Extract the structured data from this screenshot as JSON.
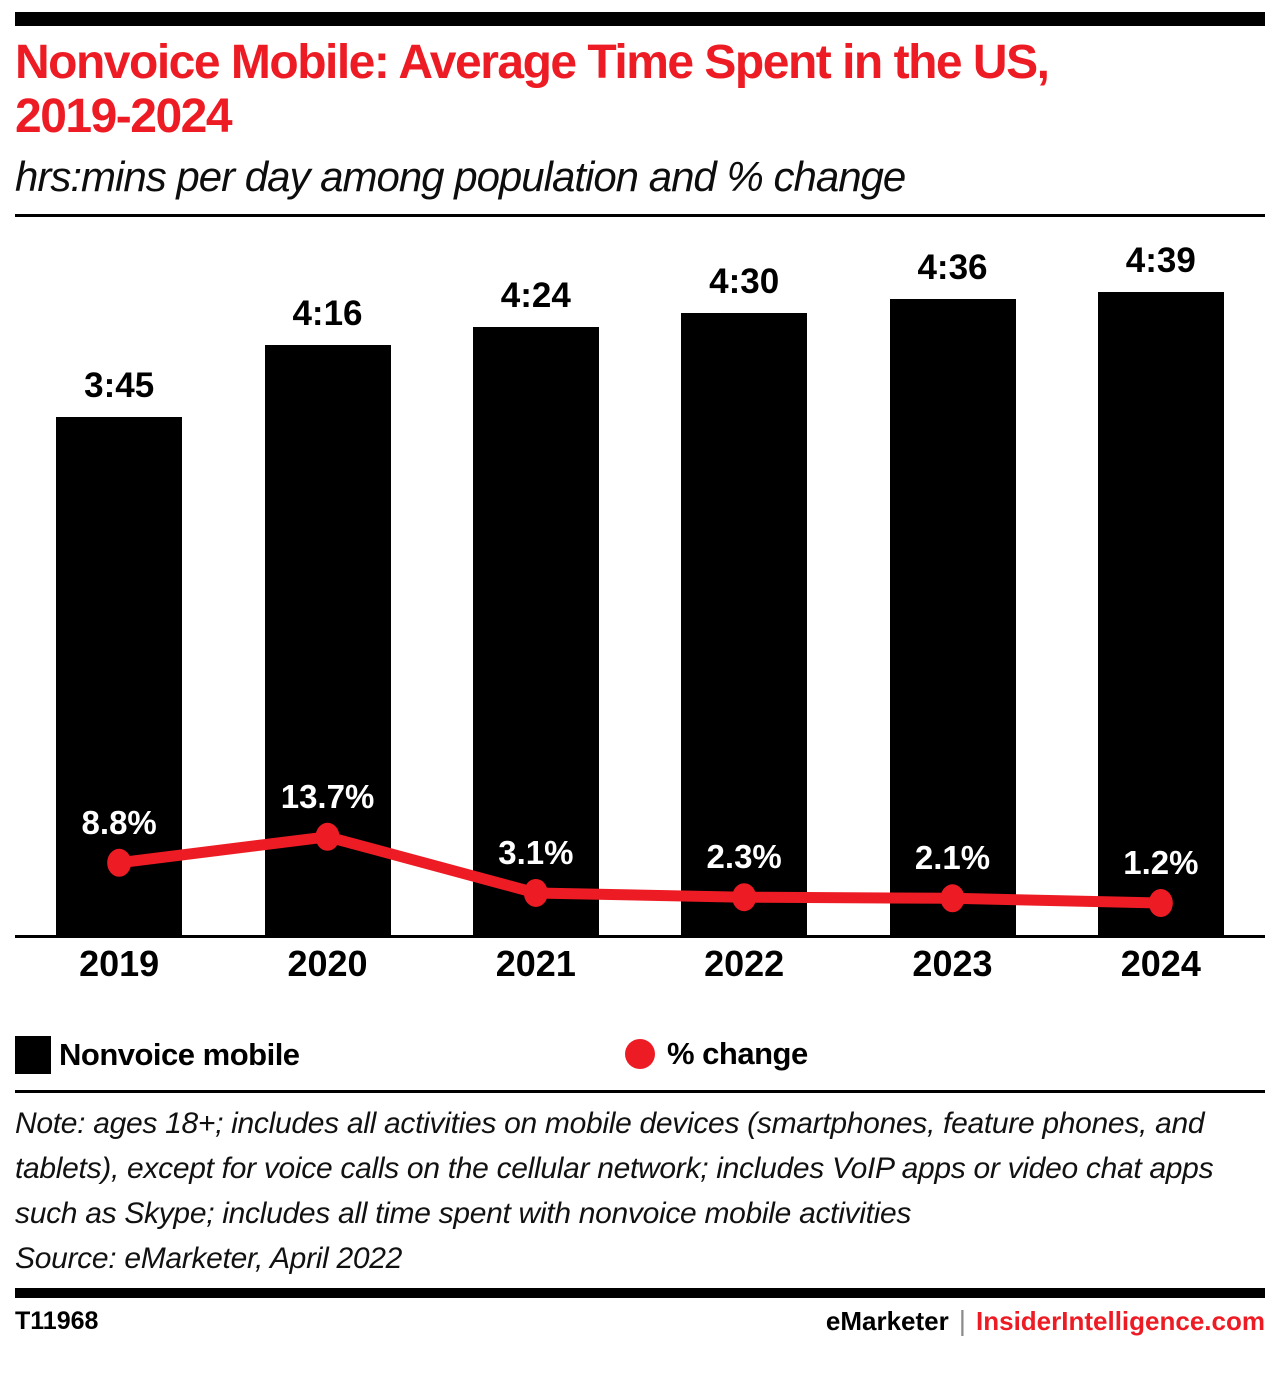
{
  "header": {
    "title_line1": "Nonvoice Mobile: Average Time Spent in the US,",
    "title_line2": "2019-2024",
    "subtitle": "hrs:mins per day among population and % change"
  },
  "chart_data": {
    "type": "bar",
    "combo": "bar+line",
    "title": "Nonvoice Mobile: Average Time Spent in the US, 2019-2024",
    "subtitle": "hrs:mins per day among population and % change",
    "categories": [
      "2019",
      "2020",
      "2021",
      "2022",
      "2023",
      "2024"
    ],
    "series": [
      {
        "name": "Nonvoice mobile",
        "type": "bar",
        "unit": "hrs:mins per day",
        "labels": [
          "3:45",
          "4:16",
          "4:24",
          "4:30",
          "4:36",
          "4:39"
        ],
        "values_minutes": [
          225,
          256,
          264,
          270,
          276,
          279
        ],
        "color": "#000000",
        "label_color": "#000000"
      },
      {
        "name": "% change",
        "type": "line",
        "unit": "%",
        "labels": [
          "8.8%",
          "13.7%",
          "3.1%",
          "2.3%",
          "2.1%",
          "1.2%"
        ],
        "values": [
          8.8,
          13.7,
          3.1,
          2.3,
          2.1,
          1.2
        ],
        "color": "#ED1C24",
        "label_color": "#ffffff"
      }
    ],
    "xlabel": "",
    "ylabel": "",
    "grid": false,
    "legend_position": "bottom"
  },
  "legend": {
    "bar_label": "Nonvoice mobile",
    "line_label": "% change"
  },
  "note": {
    "text": "Note: ages 18+; includes all activities on mobile devices (smartphones, feature phones, and tablets), except for voice calls on the cellular network; includes VoIP apps or video chat apps such as Skype; includes all time spent with nonvoice mobile activities",
    "source": "Source: eMarketer, April 2022"
  },
  "footer": {
    "chart_id": "T11968",
    "brand": "eMarketer",
    "separator": "|",
    "site": "InsiderIntelligence.com"
  },
  "colors": {
    "accent_red": "#ED1C24",
    "bar_black": "#000000",
    "pct_label_white": "#ffffff",
    "separator_gray": "#8c8c8c"
  }
}
